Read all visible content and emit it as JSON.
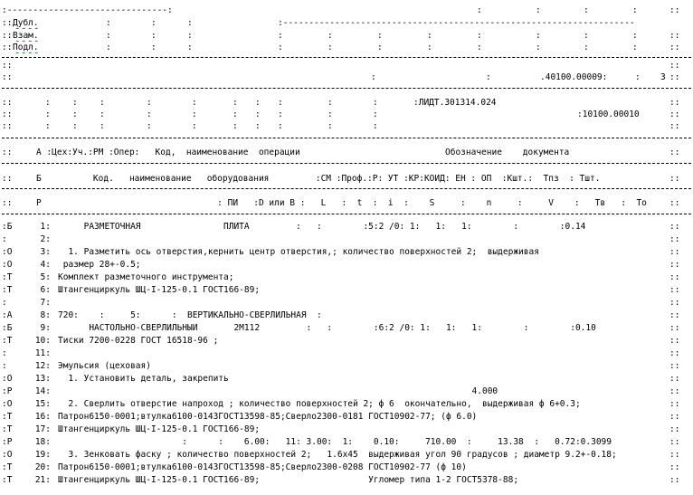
{
  "header": {
    "dubl": "Дубл.",
    "vzam": "Взам.",
    "podl": "Подл.",
    "doc_num": ".40100.00009:",
    "sheet_count": "3",
    "designation": ":ЛИДТ.301314.024",
    "detail_code": ":10100.00010"
  },
  "labels": {
    "row_a": "А :Цех:Уч.:РМ :Опер:   Код,  наименование  операции",
    "row_a_right": "Обозначение    документа",
    "row_b": "Б          Код.   наименование   оборудования         :СМ :Проф.:Р: УТ :КР:КОИД: ЕН : ОП  :Кшт.:  Тпз  : Тшт.",
    "row_r": "Р                                  : ПИ   :D или В :   L   :  t  :  i  :    S     :    n     :     V    :   Тв   :  То"
  },
  "lines": [
    {
      "prefix": ":Б",
      "num": "1:",
      "text": "     РАЗМЕТОЧНАЯ                ПЛИТА         :   :        :5:2 /0: 1:   1:   1:        :        :0.14"
    },
    {
      "prefix": ":",
      "num": "2:",
      "text": ""
    },
    {
      "prefix": ":О",
      "num": "3:",
      "text": "  1. Разметить ось отверстия,кернить центр отверстия,; количество поверхностей 2;  выдерживая"
    },
    {
      "prefix": ":О",
      "num": "4:",
      "text": " размер 28+-0.5;"
    },
    {
      "prefix": ":Т",
      "num": "5:",
      "text": "Комплект разметочного инструмента;"
    },
    {
      "prefix": ":Т",
      "num": "6:",
      "text": "Штангенциркуль ШЦ-I-125-0.1 ГОСТ166-89;"
    },
    {
      "prefix": ":",
      "num": "7:",
      "text": ""
    },
    {
      "prefix": ":А",
      "num": "8:",
      "text": "720:    :     5:      :  ВЕРТИКАЛЬНО-СВЕРЛИЛЬНАЯ  :"
    },
    {
      "prefix": ":Б",
      "num": "9:",
      "text": "      НАСТОЛЬНО-СВЕРЛИЛЬНЫЙ       2М112         :   :        :6:2 /0: 1:   1:   1:        :        :0.10"
    },
    {
      "prefix": ":Т",
      "num": "10:",
      "text": "Тиски 7200-0228 ГОСТ 16518-96 ;"
    },
    {
      "prefix": ":",
      "num": "11:",
      "text": ""
    },
    {
      "prefix": ":",
      "num": "12:",
      "text": "Эмульсия (цеховая)"
    },
    {
      "prefix": ":О",
      "num": "13:",
      "text": "  1. Установить деталь, закрепить"
    },
    {
      "prefix": ":Р",
      "num": "14:",
      "text": "                                                                                4.000"
    },
    {
      "prefix": ":О",
      "num": "15:",
      "text": "  2. Сверлить отверстие напроход ; количество поверхностей 2; ф 6  окончательно,  выдерживая ф 6+0.3;"
    },
    {
      "prefix": ":Т",
      "num": "16:",
      "text": "Патрон6150-0001;втулка6100-0143ГОСТ13598-85;Сверло2300-0181 ГОСТ10902-77; (ф 6.0)"
    },
    {
      "prefix": ":Т",
      "num": "17:",
      "text": "Штангенциркуль ШЦ-I-125-0.1 ГОСТ166-89;"
    },
    {
      "prefix": ":Р",
      "num": "18:",
      "text": "                        :      :    6.00:   11: 3.00:  1:    0.10:     710.00  :     13.38  :   0.72:0.3099"
    },
    {
      "prefix": ":О",
      "num": "19:",
      "text": "  3. Зенковать фаску ; количество поверхностей 2;   1.6х45  выдерживая угол 90 градусов ; диаметр 9.2+-0.18;"
    },
    {
      "prefix": ":Т",
      "num": "20:",
      "text": "Патрон6150-0001;втулка6100-0143ГОСТ13598-85;Сверло2300-0208 ГОСТ10902-77 (ф 10)"
    },
    {
      "prefix": ":Т",
      "num": "21:",
      "text": "Штангенциркуль ШЦ-I-125-0.1 ГОСТ166-89;                     Угломер типа 1-2 ГОСТ5378-88;"
    }
  ]
}
